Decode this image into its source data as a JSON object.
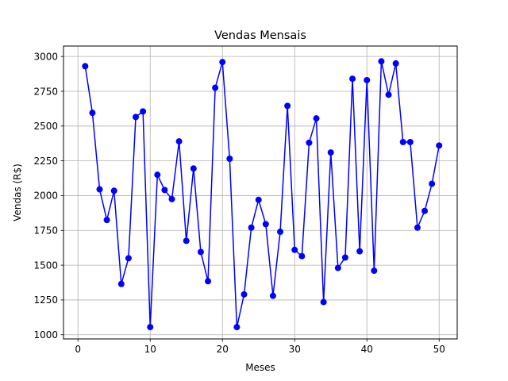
{
  "chart_data": {
    "type": "line",
    "title": "Vendas Mensais",
    "xlabel": "Meses",
    "ylabel": "Vendas (R$)",
    "xlim": [
      -2,
      52.5
    ],
    "ylim": [
      970,
      3075
    ],
    "xticks": [
      0,
      10,
      20,
      30,
      40,
      50
    ],
    "yticks": [
      1000,
      1250,
      1500,
      1750,
      2000,
      2250,
      2500,
      2750,
      3000
    ],
    "grid": true,
    "series": [
      {
        "color": "#0000ff",
        "marker": "circle",
        "x": [
          1,
          2,
          3,
          4,
          5,
          6,
          7,
          8,
          9,
          10,
          11,
          12,
          13,
          14,
          15,
          16,
          17,
          18,
          19,
          20,
          21,
          22,
          23,
          24,
          25,
          26,
          27,
          28,
          29,
          30,
          31,
          32,
          33,
          34,
          35,
          36,
          37,
          38,
          39,
          40,
          41,
          42,
          43,
          44,
          45,
          46,
          47,
          48,
          49,
          50
        ],
        "values": [
          2930,
          2595,
          2045,
          1825,
          2035,
          1365,
          1550,
          2565,
          2605,
          1055,
          2150,
          2040,
          1975,
          2390,
          1675,
          2195,
          1595,
          1385,
          2775,
          2960,
          2265,
          1055,
          1290,
          1770,
          1970,
          1795,
          1280,
          1740,
          2645,
          1610,
          1565,
          2380,
          2555,
          1235,
          2310,
          1480,
          1555,
          2840,
          1600,
          2830,
          1460,
          2965,
          2725,
          2950,
          2385,
          2385,
          1770,
          1890,
          2085,
          2360
        ]
      }
    ]
  }
}
